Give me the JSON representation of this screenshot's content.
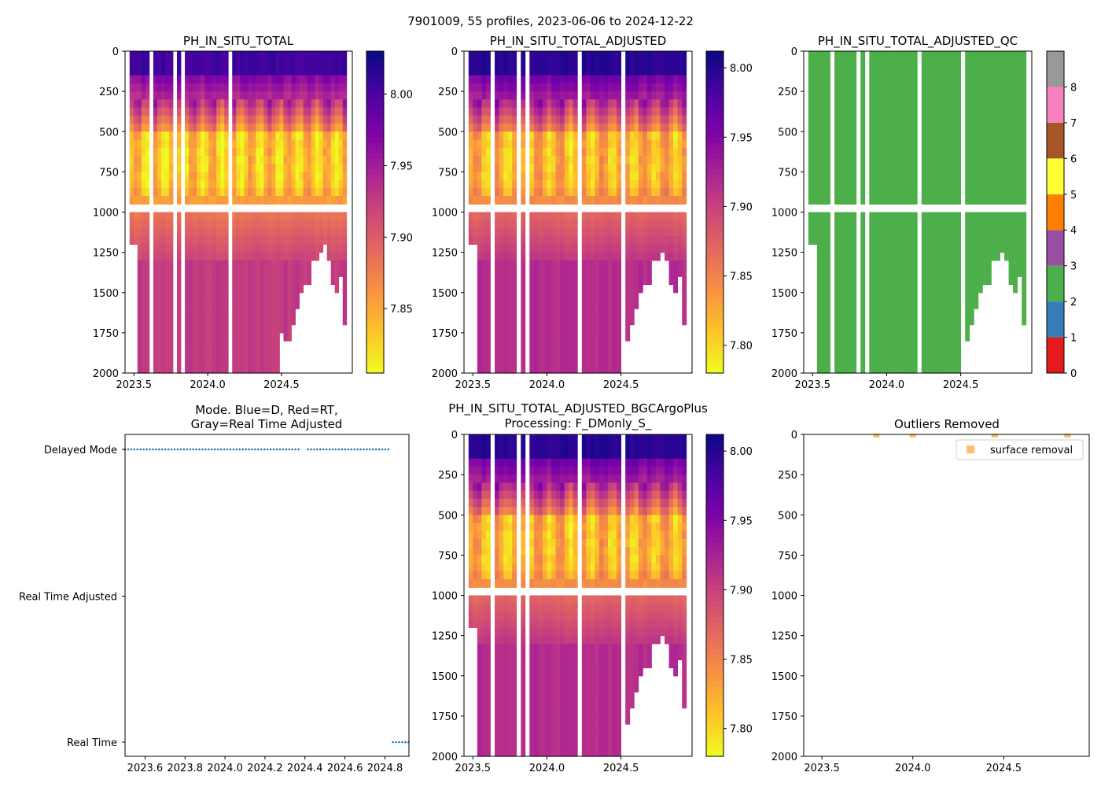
{
  "suptitle": "7901009, 55 profiles, 2023-06-06 to 2024-12-22",
  "colors": {
    "plasma": [
      "#f0f921",
      "#fdc328",
      "#f89441",
      "#e56b5d",
      "#cc4778",
      "#aa2395",
      "#7e03a8",
      "#4c02a1",
      "#0d0887"
    ],
    "qc": [
      "#e41a1c",
      "#377eb8",
      "#4daf4a",
      "#984ea3",
      "#ff7f00",
      "#ffff33",
      "#a65628",
      "#f781bf",
      "#999999"
    ],
    "mode_dots": "#1f77b4",
    "outlier": "#fdbf6f"
  },
  "chart_data": [
    {
      "id": "p1",
      "type": "heatmap",
      "title": "PH_IN_SITU_TOTAL",
      "xlim": [
        2023.44,
        2024.98
      ],
      "ylim": [
        2000,
        0
      ],
      "xticks": [
        2023.5,
        2024.0,
        2024.5
      ],
      "xtick_labels": [
        "2023.5",
        "2024.0",
        "2024.5"
      ],
      "yticks": [
        0,
        250,
        500,
        750,
        1000,
        1250,
        1500,
        1750,
        2000
      ],
      "ytick_labels": [
        "0",
        "250",
        "500",
        "750",
        "1000",
        "1250",
        "1500",
        "1750",
        "2000"
      ],
      "colorbar": {
        "vmin": 7.805,
        "vmax": 8.03,
        "ticks": [
          7.85,
          7.9,
          7.95,
          8.0
        ],
        "tick_labels": [
          "7.85",
          "7.90",
          "7.95",
          "8.00"
        ]
      },
      "profile_count": 55,
      "date_range": [
        "2023-06-06",
        "2024-12-22"
      ]
    },
    {
      "id": "p2",
      "type": "heatmap",
      "title": "PH_IN_SITU_TOTAL_ADJUSTED",
      "xlim": [
        2023.44,
        2024.98
      ],
      "ylim": [
        2000,
        0
      ],
      "xticks": [
        2023.5,
        2024.0,
        2024.5
      ],
      "xtick_labels": [
        "2023.5",
        "2024.0",
        "2024.5"
      ],
      "yticks": [
        0,
        250,
        500,
        750,
        1000,
        1250,
        1500,
        1750,
        2000
      ],
      "ytick_labels": [
        "0",
        "250",
        "500",
        "750",
        "1000",
        "1250",
        "1500",
        "1750",
        "2000"
      ],
      "colorbar": {
        "vmin": 7.78,
        "vmax": 8.012,
        "ticks": [
          7.8,
          7.85,
          7.9,
          7.95,
          8.0
        ],
        "tick_labels": [
          "7.80",
          "7.85",
          "7.90",
          "7.95",
          "8.00"
        ]
      }
    },
    {
      "id": "p3",
      "type": "heatmap",
      "title": "PH_IN_SITU_TOTAL_ADJUSTED_QC",
      "xlim": [
        2023.44,
        2024.98
      ],
      "ylim": [
        2000,
        0
      ],
      "xticks": [
        2023.5,
        2024.0,
        2024.5
      ],
      "xtick_labels": [
        "2023.5",
        "2024.0",
        "2024.5"
      ],
      "yticks": [
        0,
        250,
        500,
        750,
        1000,
        1250,
        1500,
        1750,
        2000
      ],
      "ytick_labels": [
        "0",
        "250",
        "500",
        "750",
        "1000",
        "1250",
        "1500",
        "1750",
        "2000"
      ],
      "qc_value_shown": 2,
      "colorbar": {
        "categories": [
          0,
          1,
          2,
          3,
          4,
          5,
          6,
          7,
          8
        ],
        "tick_labels": [
          "0",
          "1",
          "2",
          "3",
          "4",
          "5",
          "6",
          "7",
          "8"
        ]
      }
    },
    {
      "id": "p4",
      "type": "scatter",
      "title": "Mode. Blue=D, Red=RT,\nGray=Real Time Adjusted",
      "xlim": [
        2023.5,
        2024.92
      ],
      "xticks": [
        2023.6,
        2023.8,
        2024.0,
        2024.2,
        2024.4,
        2024.6,
        2024.8
      ],
      "xtick_labels": [
        "2023.6",
        "2023.8",
        "2024.0",
        "2024.2",
        "2024.4",
        "2024.6",
        "2024.8"
      ],
      "ycategories": [
        "Delayed Mode",
        "Real Time Adjusted",
        "Real Time"
      ],
      "series": [
        {
          "name": "Delayed Mode",
          "x_start": 2023.5,
          "x_end": 2024.83,
          "gap": [
            2024.37,
            2024.41
          ],
          "step": 0.0155
        },
        {
          "name": "Real Time",
          "x_start": 2024.84,
          "x_end": 2024.92,
          "step": 0.0155
        }
      ]
    },
    {
      "id": "p5",
      "type": "heatmap",
      "title": "PH_IN_SITU_TOTAL_ADJUSTED_BGCArgoPlus\nProcessing: F_DMonly_S_",
      "xlim": [
        2023.44,
        2024.98
      ],
      "ylim": [
        2000,
        0
      ],
      "xticks": [
        2023.5,
        2024.0,
        2024.5
      ],
      "xtick_labels": [
        "2023.5",
        "2024.0",
        "2024.5"
      ],
      "yticks": [
        0,
        250,
        500,
        750,
        1000,
        1250,
        1500,
        1750,
        2000
      ],
      "ytick_labels": [
        "0",
        "250",
        "500",
        "750",
        "1000",
        "1250",
        "1500",
        "1750",
        "2000"
      ],
      "colorbar": {
        "vmin": 7.78,
        "vmax": 8.012,
        "ticks": [
          7.8,
          7.85,
          7.9,
          7.95,
          8.0
        ],
        "tick_labels": [
          "7.80",
          "7.85",
          "7.90",
          "7.95",
          "8.00"
        ]
      }
    },
    {
      "id": "p6",
      "type": "scatter",
      "title": "Outliers Removed",
      "xlim": [
        2023.4,
        2024.97
      ],
      "ylim": [
        2000,
        0
      ],
      "xticks": [
        2023.5,
        2024.0,
        2024.5
      ],
      "xtick_labels": [
        "2023.5",
        "2024.0",
        "2024.5"
      ],
      "yticks": [
        0,
        250,
        500,
        750,
        1000,
        1250,
        1500,
        1750,
        2000
      ],
      "ytick_labels": [
        "0",
        "250",
        "500",
        "750",
        "1000",
        "1250",
        "1500",
        "1750",
        "2000"
      ],
      "legend": {
        "label": "surface removal",
        "loc": "upper right"
      },
      "series": [
        {
          "name": "surface removal",
          "x": [
            2023.8,
            2024.0,
            2024.45,
            2024.85
          ],
          "y": [
            0,
            0,
            0,
            0
          ]
        }
      ]
    }
  ]
}
